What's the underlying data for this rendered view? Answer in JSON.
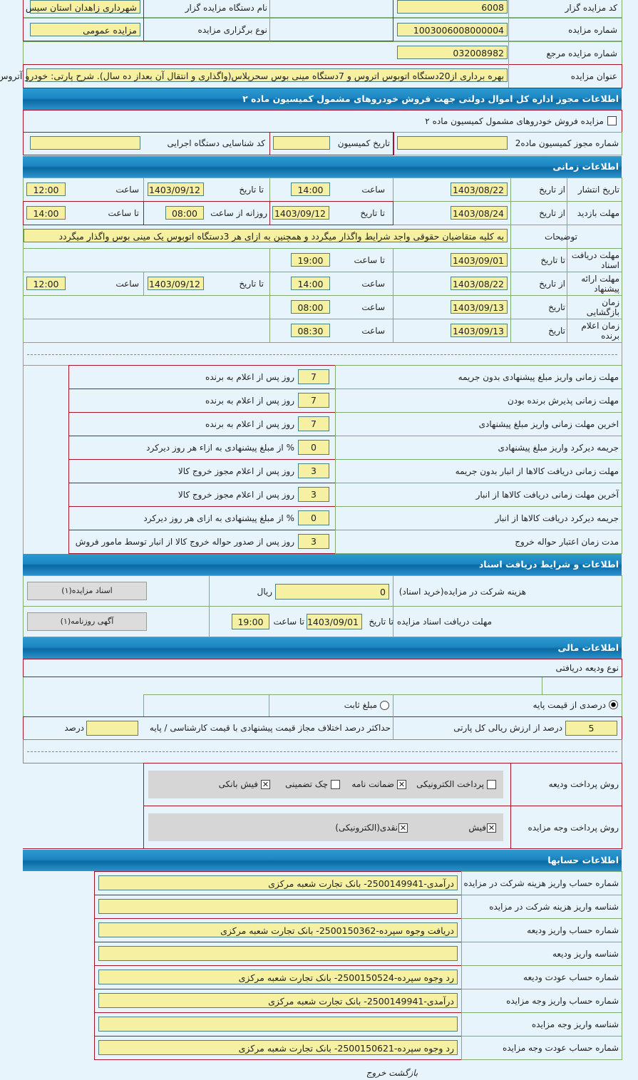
{
  "general": {
    "code_label": "کد مزایده گزار",
    "code": "6008",
    "org_label": "نام دستگاه مزایده گزار",
    "org": "شهرداری زاهدان استان سیس",
    "num_label": "شماره مزایده",
    "num": "1003006008000004",
    "type_label": "نوع برگزاری مزایده",
    "type": "مزایده عمومی",
    "ref_label": "شماره مزایده مرجع",
    "ref": "032008982",
    "title_label": "عنوان مزایده",
    "title": "بهره برداری از20دستگاه اتوبوس اتروس و 7دستگاه مینی بوس سحرپلاس(واگذاری و انتقال آن بعداز ده سال). شرح پارتی: خودرو آتروس"
  },
  "permit": {
    "header": "اطلاعات مجوز اداره کل اموال دولتی جهت فروش خودروهای مشمول کمیسیون ماده ۲",
    "checkbox_label": "مزایده فروش خودروهای مشمول کمیسیون ماده ۲",
    "checked": false,
    "permit_no_label": "شماره مجوز کمیسیون ماده2",
    "permit_no": "",
    "date_label": "تاریخ کمیسیون",
    "date": "",
    "exec_code_label": "کد شناسایی دستگاه اجرایی",
    "exec_code": ""
  },
  "time": {
    "header": "اطلاعات زمانی",
    "publish": {
      "label": "تاریخ انتشار",
      "from": "از تاریخ",
      "from_date": "1403/08/22",
      "hour": "ساعت",
      "from_time": "14:00",
      "to": "تا تاریخ",
      "to_date": "1403/09/12",
      "hour2": "ساعت",
      "to_time": "12:00"
    },
    "visit": {
      "label": "مهلت بازدید",
      "from": "از تاریخ",
      "from_date": "1403/08/24",
      "to": "تا تاریخ",
      "to_date": "1403/09/12",
      "daily": "روزانه از ساعت",
      "from_time": "08:00",
      "to_hour": "تا ساعت",
      "to_time": "14:00"
    },
    "notes": {
      "label": "توضیحات",
      "value": "به کلیه متقاضیان حقوقی واجد شرایط واگذار میگردد و همچنین به ازای هر 3دستگاه اتوبوس یک مینی بوس واگذار میگردد"
    },
    "docs": {
      "label": "مهلت دریافت اسناد",
      "to": "تا تاریخ",
      "date": "1403/09/01",
      "to_hour": "تا ساعت",
      "time": "19:00"
    },
    "offer": {
      "label": "مهلت ارائه پیشنهاد",
      "from": "از تاریخ",
      "from_date": "1403/08/22",
      "hour": "ساعت",
      "from_time": "14:00",
      "to": "تا تاریخ",
      "to_date": "1403/09/12",
      "hour2": "ساعت",
      "to_time": "12:00"
    },
    "opening": {
      "label": "زمان بازگشایی",
      "date_label": "تاریخ",
      "date": "1403/09/13",
      "hour": "ساعت",
      "time": "08:00"
    },
    "winner": {
      "label": "زمان اعلام برنده",
      "date_label": "تاریخ",
      "date": "1403/09/13",
      "hour": "ساعت",
      "time": "08:30"
    }
  },
  "penalties": [
    {
      "label": "مهلت زمانی واریز مبلغ پیشنهادی بدون جریمه",
      "value": "7",
      "unit": "روز پس از اعلام به برنده"
    },
    {
      "label": "مهلت زمانی پذیرش برنده بودن",
      "value": "7",
      "unit": "روز پس از اعلام به برنده"
    },
    {
      "label": "اخرین مهلت زمانی واریز مبلغ پیشنهادی",
      "value": "7",
      "unit": "روز پس از اعلام به برنده"
    },
    {
      "label": "جریمه دیرکرد واریز مبلغ پیشنهادی",
      "value": "0",
      "unit": "% از مبلغ پیشنهادی به ازاء هر روز دیرکرد"
    },
    {
      "label": "مهلت زمانی دریافت کالاها از انبار بدون جریمه",
      "value": "3",
      "unit": "روز پس از اعلام مجوز خروج کالا"
    },
    {
      "label": "آخرین مهلت زمانی دریافت کالاها از انبار",
      "value": "3",
      "unit": "روز پس از اعلام مجوز خروج کالا"
    },
    {
      "label": "جریمه دیرکرد دریافت کالاها از انبار",
      "value": "0",
      "unit": "% از مبلغ پیشنهادی به ازای هر روز دیرکرد"
    },
    {
      "label": "مدت زمان اعتبار حواله خروج",
      "value": "3",
      "unit": "روز پس از صدور حواله خروج کالا از انبار توسط مامور فروش"
    }
  ],
  "docs_section": {
    "header": "اطلاعات و شرایط دریافت اسناد",
    "fee_label": "هزینه شرکت در مزایده(خرید اسناد)",
    "fee": "0",
    "currency": "ریال",
    "docs_button": "اسناد مزایده(۱)",
    "deadline_label": "مهلت دریافت اسناد مزایده",
    "to_date_label": "تا تاریخ",
    "date": "1403/09/01",
    "to_hour_label": "تا ساعت",
    "time": "19:00",
    "ad_button": "آگهی روزنامه(۱)"
  },
  "finance": {
    "header": "اطلاعات مالی",
    "deposit_type_label": "نوع ودیعه دریافتی",
    "radio_percent": "درصدی از قیمت پایه",
    "radio_fixed": "مبلغ ثابت",
    "selected": "percent",
    "percent": "5",
    "percent_label": "درصد از ارزش ریالی کل پارتی",
    "max_diff_label": "حداکثر درصد اختلاف مجاز قیمت پیشنهادی با قیمت کارشناسی / پایه",
    "max_diff": "",
    "max_diff_unit": "درصد",
    "deposit_method_label": "روش پرداخت ودیعه",
    "deposit_methods": [
      {
        "label": "پرداخت الکترونیکی",
        "checked": false
      },
      {
        "label": "ضمانت نامه",
        "checked": true
      },
      {
        "label": "چک تضمینی",
        "checked": false
      },
      {
        "label": "فیش بانکی",
        "checked": true
      }
    ],
    "payment_method_label": "روش پرداخت وجه مزایده",
    "payment_methods": [
      {
        "label": "فیش",
        "checked": true
      },
      {
        "label": "نقدی(الکترونیکی)",
        "checked": true
      }
    ]
  },
  "accounts": {
    "header": "اطلاعات حسابها",
    "rows": [
      {
        "label": "شماره حساب واریز هزینه شرکت در مزایده",
        "value": "درآمدی-2500149941- بانک تجارت شعبه مرکزی"
      },
      {
        "label": "شناسه واریز هزینه شرکت در مزایده",
        "value": ""
      },
      {
        "label": "شماره حساب واریز ودیعه",
        "value": "دریافت وجوه سپرده-2500150362- بانک تجارت شعبه مرکزی"
      },
      {
        "label": "شناسه واریز ودیعه",
        "value": ""
      },
      {
        "label": "شماره حساب عودت ودیعه",
        "value": "رد وجوه سپرده-2500150524- بانک تجارت شعبه مرکزی"
      },
      {
        "label": "شماره حساب واریز وجه مزایده",
        "value": "درآمدی-2500149941- بانک تجارت شعبه مرکزی"
      },
      {
        "label": "شناسه واریز وجه مزایده",
        "value": ""
      },
      {
        "label": "شماره حساب عودت وجه مزایده",
        "value": "رد وجوه سپرده-2500150621- بانک تجارت شعبه مرکزی"
      }
    ]
  },
  "footer": {
    "back": "بازگشت",
    "exit": "خروج"
  }
}
